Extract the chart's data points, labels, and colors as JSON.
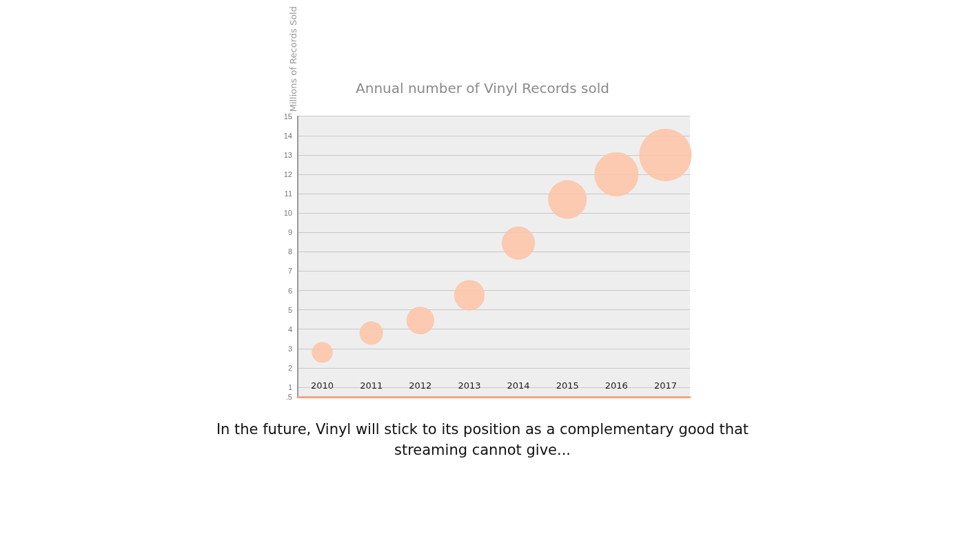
{
  "chart_data": {
    "type": "bubble",
    "title": "Annual number of Vinyl Records sold",
    "ylabel": "Millions of Records Sold",
    "categories": [
      "2010",
      "2011",
      "2012",
      "2013",
      "2014",
      "2015",
      "2016",
      "2017"
    ],
    "values": [
      2.8,
      3.8,
      4.45,
      5.75,
      8.45,
      10.7,
      12.0,
      13.0
    ],
    "sizes": [
      0.16,
      0.2,
      0.28,
      0.34,
      0.4,
      0.54,
      0.71,
      1
    ],
    "color": "#fcc5a8",
    "ylim": [
      0.5,
      15
    ],
    "yticks": [
      {
        "value": 0.5,
        "label": ".5"
      },
      1,
      2,
      3,
      4,
      5,
      6,
      7,
      8,
      9,
      10,
      11,
      12,
      13,
      14,
      15
    ],
    "grid": "y",
    "annotations": [
      "In the future, Vinyl will stick to its position as a complementary good that streaming cannot give..."
    ]
  }
}
